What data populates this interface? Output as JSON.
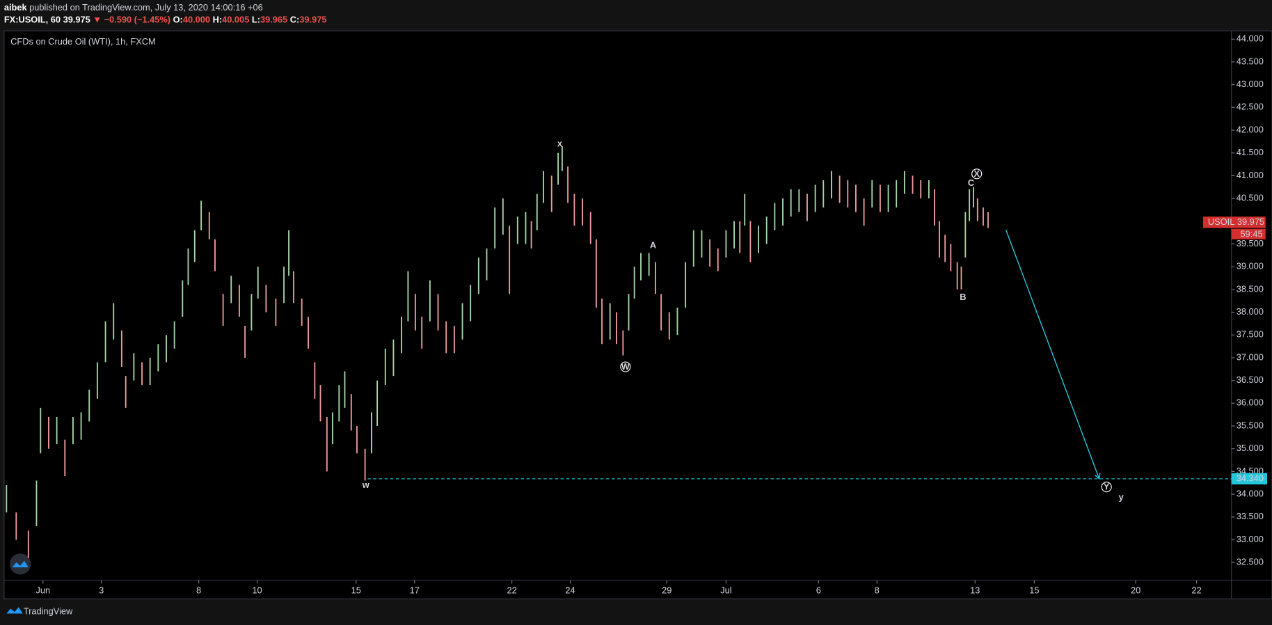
{
  "header": {
    "author": "aibek",
    "published": "published on TradingView.com, July 13, 2020 14:00:16 +06",
    "symbol": "FX:USOIL, 60",
    "last": "39.975",
    "change": "▼ −0.590 (−1.45%)",
    "ohlc": [
      {
        "key": "O:",
        "value": "40.000"
      },
      {
        "key": "H:",
        "value": "40.005"
      },
      {
        "key": "L:",
        "value": "39.965"
      },
      {
        "key": "C:",
        "value": "39.975"
      }
    ]
  },
  "footer": {
    "brand": "TradingView"
  },
  "chart_data": {
    "type": "ohlc",
    "title": "CFDs on Crude Oil (WTI), 1h, FXCM",
    "up_color": "#a5d6a7",
    "down_color": "#ef9a9a",
    "grid": false,
    "x": [
      3,
      15,
      30,
      40,
      45,
      55,
      65,
      75,
      85,
      95,
      105,
      115,
      125,
      135,
      145,
      150,
      160,
      170,
      180,
      190,
      200,
      210,
      220,
      227,
      235,
      243,
      253,
      260,
      270,
      280,
      290,
      297,
      305,
      313,
      323,
      335,
      345,
      351,
      357,
      367,
      375,
      383,
      390,
      398,
      405,
      413,
      420,
      428,
      435,
      445,
      453,
      460,
      470,
      480,
      490,
      498,
      507,
      515,
      525,
      535,
      545,
      555,
      565,
      575,
      585,
      595,
      605,
      615,
      623,
      633,
      643,
      650,
      657,
      665,
      675,
      683,
      688,
      695,
      703,
      713,
      723,
      730,
      737,
      747,
      755,
      763,
      770,
      777,
      785,
      795,
      803,
      810,
      820,
      830,
      840,
      850,
      860,
      870,
      880,
      890,
      900,
      907,
      913,
      920,
      930,
      940,
      950,
      960,
      970,
      980,
      990,
      1000,
      1010,
      1020,
      1030,
      1040,
      1050,
      1060,
      1070,
      1080,
      1090,
      1100,
      1110,
      1120,
      1130,
      1140,
      1147,
      1153,
      1160,
      1167,
      1175,
      1180,
      1185,
      1190,
      1195,
      1200,
      1207,
      1213
    ],
    "high": [
      34.2,
      33.6,
      33.2,
      34.3,
      35.9,
      35.7,
      35.7,
      35.2,
      35.7,
      35.8,
      36.3,
      36.9,
      37.8,
      38.2,
      37.6,
      36.6,
      37.1,
      36.9,
      37.0,
      37.3,
      37.5,
      37.8,
      38.7,
      39.4,
      39.8,
      40.45,
      40.2,
      39.6,
      38.4,
      38.8,
      38.6,
      37.7,
      38.4,
      39.0,
      38.6,
      38.3,
      39.0,
      39.8,
      38.9,
      38.3,
      37.9,
      36.9,
      36.4,
      35.7,
      35.8,
      36.4,
      36.7,
      36.2,
      35.5,
      35.0,
      35.8,
      36.5,
      37.2,
      37.4,
      37.9,
      38.9,
      38.4,
      37.9,
      38.7,
      38.4,
      37.8,
      37.7,
      38.2,
      38.6,
      39.2,
      39.4,
      40.3,
      40.5,
      39.9,
      40.1,
      40.2,
      40.0,
      40.6,
      41.1,
      41.0,
      41.5,
      41.65,
      41.2,
      40.6,
      40.5,
      40.2,
      39.6,
      38.3,
      38.2,
      38.0,
      37.6,
      38.4,
      39.0,
      39.3,
      39.3,
      39.1,
      38.4,
      38.0,
      38.1,
      39.1,
      39.8,
      39.8,
      39.6,
      39.4,
      39.8,
      40.0,
      40.0,
      40.6,
      40.0,
      39.9,
      40.1,
      40.4,
      40.5,
      40.7,
      40.7,
      40.6,
      40.8,
      40.9,
      41.1,
      41.0,
      40.9,
      40.8,
      40.5,
      40.9,
      40.8,
      40.8,
      40.9,
      41.1,
      41.0,
      40.9,
      40.9,
      40.7,
      40.0,
      39.7,
      39.5,
      39.1,
      39.0,
      40.2,
      40.7,
      40.75,
      40.5,
      40.3,
      40.2
    ],
    "low": [
      33.6,
      33.0,
      32.6,
      33.3,
      34.9,
      35.0,
      35.1,
      34.4,
      35.1,
      35.2,
      35.6,
      36.1,
      36.9,
      37.4,
      36.8,
      35.9,
      36.5,
      36.4,
      36.4,
      36.7,
      36.9,
      37.2,
      37.9,
      38.6,
      39.1,
      39.8,
      39.6,
      38.9,
      37.7,
      38.2,
      37.9,
      37.0,
      37.6,
      38.3,
      38.0,
      37.7,
      38.2,
      38.8,
      38.2,
      37.7,
      37.2,
      36.1,
      35.6,
      34.5,
      35.1,
      35.6,
      35.9,
      35.4,
      34.9,
      34.3,
      34.9,
      35.5,
      36.4,
      36.6,
      37.1,
      37.8,
      37.6,
      37.2,
      37.8,
      37.6,
      37.1,
      37.1,
      37.4,
      37.8,
      38.4,
      38.7,
      39.4,
      39.7,
      38.4,
      39.5,
      39.5,
      39.4,
      39.8,
      40.4,
      40.2,
      40.8,
      41.1,
      40.4,
      39.9,
      39.9,
      39.5,
      38.1,
      37.3,
      37.4,
      37.3,
      37.05,
      37.6,
      38.3,
      38.7,
      38.8,
      38.4,
      37.6,
      37.4,
      37.5,
      38.1,
      39.0,
      39.2,
      39.0,
      38.9,
      39.2,
      39.4,
      39.3,
      39.9,
      39.1,
      39.3,
      39.5,
      39.8,
      39.9,
      40.1,
      40.2,
      40.0,
      40.2,
      40.3,
      40.5,
      40.4,
      40.3,
      40.2,
      39.9,
      40.3,
      40.2,
      40.2,
      40.3,
      40.6,
      40.6,
      40.5,
      40.5,
      39.9,
      39.2,
      39.1,
      38.9,
      38.5,
      38.5,
      39.2,
      40.0,
      40.3,
      40.0,
      39.9,
      39.85
    ],
    "xlim": [
      0,
      1513
    ],
    "xticks": [
      {
        "value": 48,
        "label": "Jun"
      },
      {
        "value": 120,
        "label": "3"
      },
      {
        "value": 240,
        "label": "8"
      },
      {
        "value": 312,
        "label": "10"
      },
      {
        "value": 434,
        "label": "15"
      },
      {
        "value": 506,
        "label": "17"
      },
      {
        "value": 626,
        "label": "22"
      },
      {
        "value": 698,
        "label": "24"
      },
      {
        "value": 817,
        "label": "29"
      },
      {
        "value": 890,
        "label": "Jul"
      },
      {
        "value": 1004,
        "label": "6"
      },
      {
        "value": 1076,
        "label": "8"
      },
      {
        "value": 1197,
        "label": "13"
      },
      {
        "value": 1270,
        "label": "15"
      },
      {
        "value": 1395,
        "label": "20"
      },
      {
        "value": 1470,
        "label": "22"
      }
    ],
    "ylim": [
      32.11,
      44.18
    ],
    "yticks": [
      {
        "value": 32.5,
        "label": "32.500"
      },
      {
        "value": 33,
        "label": "33.000"
      },
      {
        "value": 33.5,
        "label": "33.500"
      },
      {
        "value": 34,
        "label": "34.000"
      },
      {
        "value": 34.5,
        "label": "34.500"
      },
      {
        "value": 35,
        "label": "35.000"
      },
      {
        "value": 35.5,
        "label": "35.500"
      },
      {
        "value": 36,
        "label": "36.000"
      },
      {
        "value": 36.5,
        "label": "36.500"
      },
      {
        "value": 37,
        "label": "37.000"
      },
      {
        "value": 37.5,
        "label": "37.500"
      },
      {
        "value": 38,
        "label": "38.000"
      },
      {
        "value": 38.5,
        "label": "38.500"
      },
      {
        "value": 39,
        "label": "39.000"
      },
      {
        "value": 39.5,
        "label": "39.500"
      },
      {
        "value": 40,
        "label": "40.000"
      },
      {
        "value": 40.5,
        "label": "40.500"
      },
      {
        "value": 41,
        "label": "41.000"
      },
      {
        "value": 41.5,
        "label": "41.500"
      },
      {
        "value": 42,
        "label": "42.000"
      },
      {
        "value": 42.5,
        "label": "42.500"
      },
      {
        "value": 43,
        "label": "43.000"
      },
      {
        "value": 43.5,
        "label": "43.500"
      },
      {
        "value": 44,
        "label": "44.000"
      }
    ],
    "last_price": {
      "symbol": "USOIL",
      "value": 39.975,
      "label": "39.975",
      "countdown": "59:45",
      "color": "#d32f2f"
    },
    "level": {
      "value": 34.34,
      "label": "34.340",
      "x_start": 448,
      "color": "#26c6da"
    },
    "arrow": {
      "from": [
        1235,
        39.81
      ],
      "to": [
        1350,
        34.34
      ],
      "color": "#26c6da"
    },
    "annotations": [
      {
        "text": "x",
        "x": 685,
        "y": 41.7,
        "color": "#ffeb3b"
      },
      {
        "text": "w",
        "x": 446,
        "y": 34.2,
        "color": "#ffeb3b"
      },
      {
        "text": "W",
        "x": 766,
        "y": 36.8,
        "color": "#ffffff",
        "circled": true
      },
      {
        "text": "A",
        "x": 800,
        "y": 39.47,
        "color": "#26c6da"
      },
      {
        "text": "B",
        "x": 1182,
        "y": 38.33,
        "color": "#26c6da"
      },
      {
        "text": "C",
        "x": 1192,
        "y": 40.84,
        "color": "#26c6da"
      },
      {
        "text": "X",
        "x": 1199,
        "y": 41.04,
        "color": "#ffffff",
        "circled": true
      },
      {
        "text": "Y",
        "x": 1359,
        "y": 34.16,
        "color": "#ffffff",
        "circled": true
      },
      {
        "text": "y",
        "x": 1377,
        "y": 33.93,
        "color": "#ffeb3b"
      }
    ]
  }
}
